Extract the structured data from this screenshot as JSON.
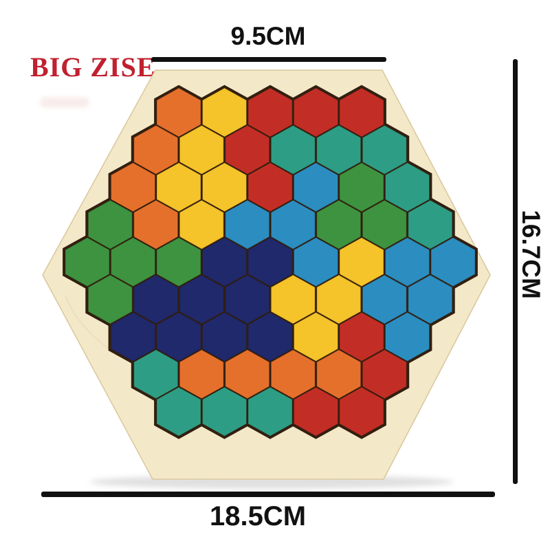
{
  "branding": {
    "logo_text": "BIG ZISE",
    "logo_color": "#c0202f"
  },
  "dimensions": {
    "top": {
      "label": "9.5CM"
    },
    "right": {
      "label": "16.7CM"
    },
    "bottom": {
      "label": "18.5CM"
    },
    "line_color": "#111111"
  },
  "board": {
    "shape": "hexagon",
    "wood_color": "#f3e8c8",
    "wood_edge_color": "#d9c79c",
    "grain_color": "#e3d3a8",
    "cavity_color": "#321f10",
    "piece_outline": "rgba(45,22,5,0.35)"
  },
  "palette": {
    "orange": "#e5702c",
    "yellow": "#f5c32a",
    "red": "#c22e26",
    "teal": "#2d9e85",
    "blue": "#2b8dc0",
    "green": "#3d9340",
    "navy": "#1f296b"
  },
  "puzzle_grid": {
    "row_counts": [
      5,
      6,
      7,
      8,
      9,
      8,
      7,
      6,
      5
    ],
    "rows": [
      [
        "orange",
        "yellow",
        "red",
        "red",
        "red"
      ],
      [
        "orange",
        "yellow",
        "red",
        "teal",
        "teal",
        "teal"
      ],
      [
        "orange",
        "yellow",
        "yellow",
        "red",
        "blue",
        "green",
        "teal"
      ],
      [
        "green",
        "orange",
        "yellow",
        "blue",
        "blue",
        "green",
        "green",
        "teal"
      ],
      [
        "green",
        "green",
        "green",
        "navy",
        "navy",
        "blue",
        "yellow",
        "blue",
        "blue"
      ],
      [
        "green",
        "navy",
        "navy",
        "navy",
        "yellow",
        "yellow",
        "blue",
        "blue"
      ],
      [
        "navy",
        "navy",
        "navy",
        "navy",
        "yellow",
        "red",
        "blue"
      ],
      [
        "teal",
        "orange",
        "orange",
        "orange",
        "orange",
        "red"
      ],
      [
        "teal",
        "teal",
        "teal",
        "red",
        "red"
      ]
    ]
  }
}
